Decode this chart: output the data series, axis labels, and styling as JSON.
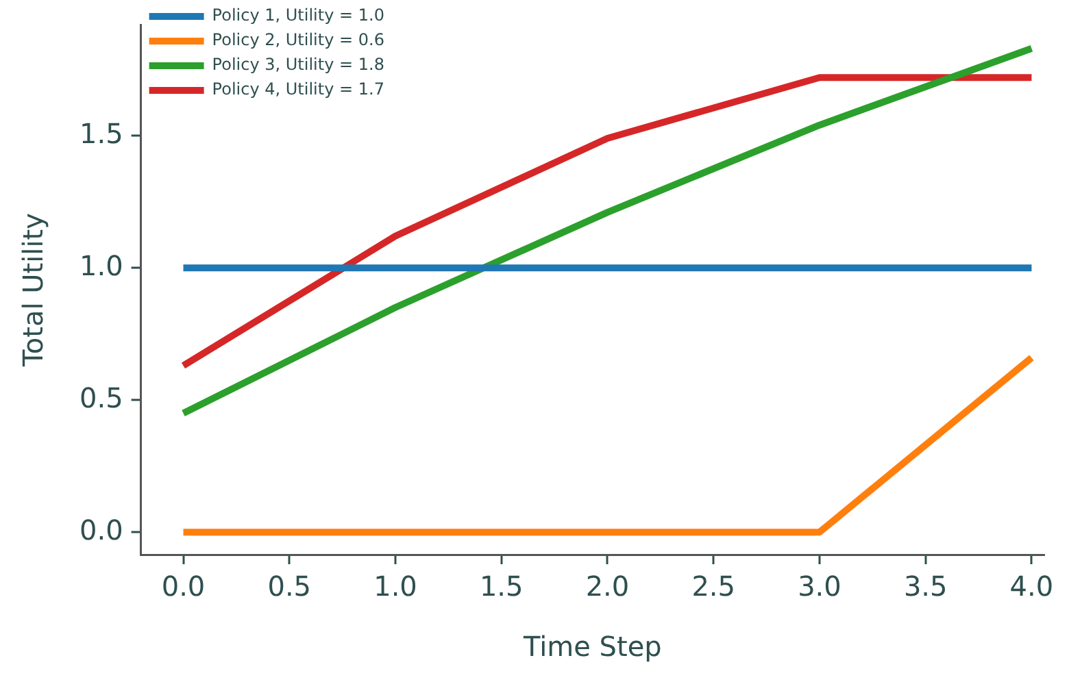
{
  "chart_data": {
    "type": "line",
    "xlabel": "Time Step",
    "ylabel": "Total Utility",
    "x": [
      0,
      1,
      2,
      3,
      4
    ],
    "series": [
      {
        "name": "Policy 1, Utility = 1.0",
        "color": "#1f77b4",
        "values": [
          1.0,
          1.0,
          1.0,
          1.0,
          1.0
        ]
      },
      {
        "name": "Policy 2, Utility = 0.6",
        "color": "#ff7f0e",
        "values": [
          0,
          0,
          0,
          0,
          0.66
        ]
      },
      {
        "name": "Policy 3, Utility = 1.8",
        "color": "#2ca02c",
        "values": [
          0.45,
          0.85,
          1.21,
          1.54,
          1.83
        ]
      },
      {
        "name": "Policy 4, Utility = 1.7",
        "color": "#d62728",
        "values": [
          0.63,
          1.12,
          1.49,
          1.72,
          1.72
        ]
      }
    ],
    "xlim": [
      -0.2,
      4.06
    ],
    "xticks": [
      {
        "value": 0,
        "label": "0.0"
      },
      {
        "value": 0.5,
        "label": "0.5"
      },
      {
        "value": 1,
        "label": "1.0"
      },
      {
        "value": 1.5,
        "label": "1.5"
      },
      {
        "value": 2,
        "label": "2.0"
      },
      {
        "value": 2.5,
        "label": "2.5"
      },
      {
        "value": 3,
        "label": "3.0"
      },
      {
        "value": 3.5,
        "label": "3.5"
      },
      {
        "value": 4,
        "label": "4.0"
      }
    ],
    "ylim": [
      -0.085,
      1.92
    ],
    "yticks": [
      {
        "value": 0,
        "label": "0.0"
      },
      {
        "value": 0.5,
        "label": "0.5"
      },
      {
        "value": 1,
        "label": "1.0"
      },
      {
        "value": 1.5,
        "label": "1.5"
      }
    ],
    "grid": false,
    "legend": "top left",
    "marker": "none",
    "line_style": "solid"
  }
}
